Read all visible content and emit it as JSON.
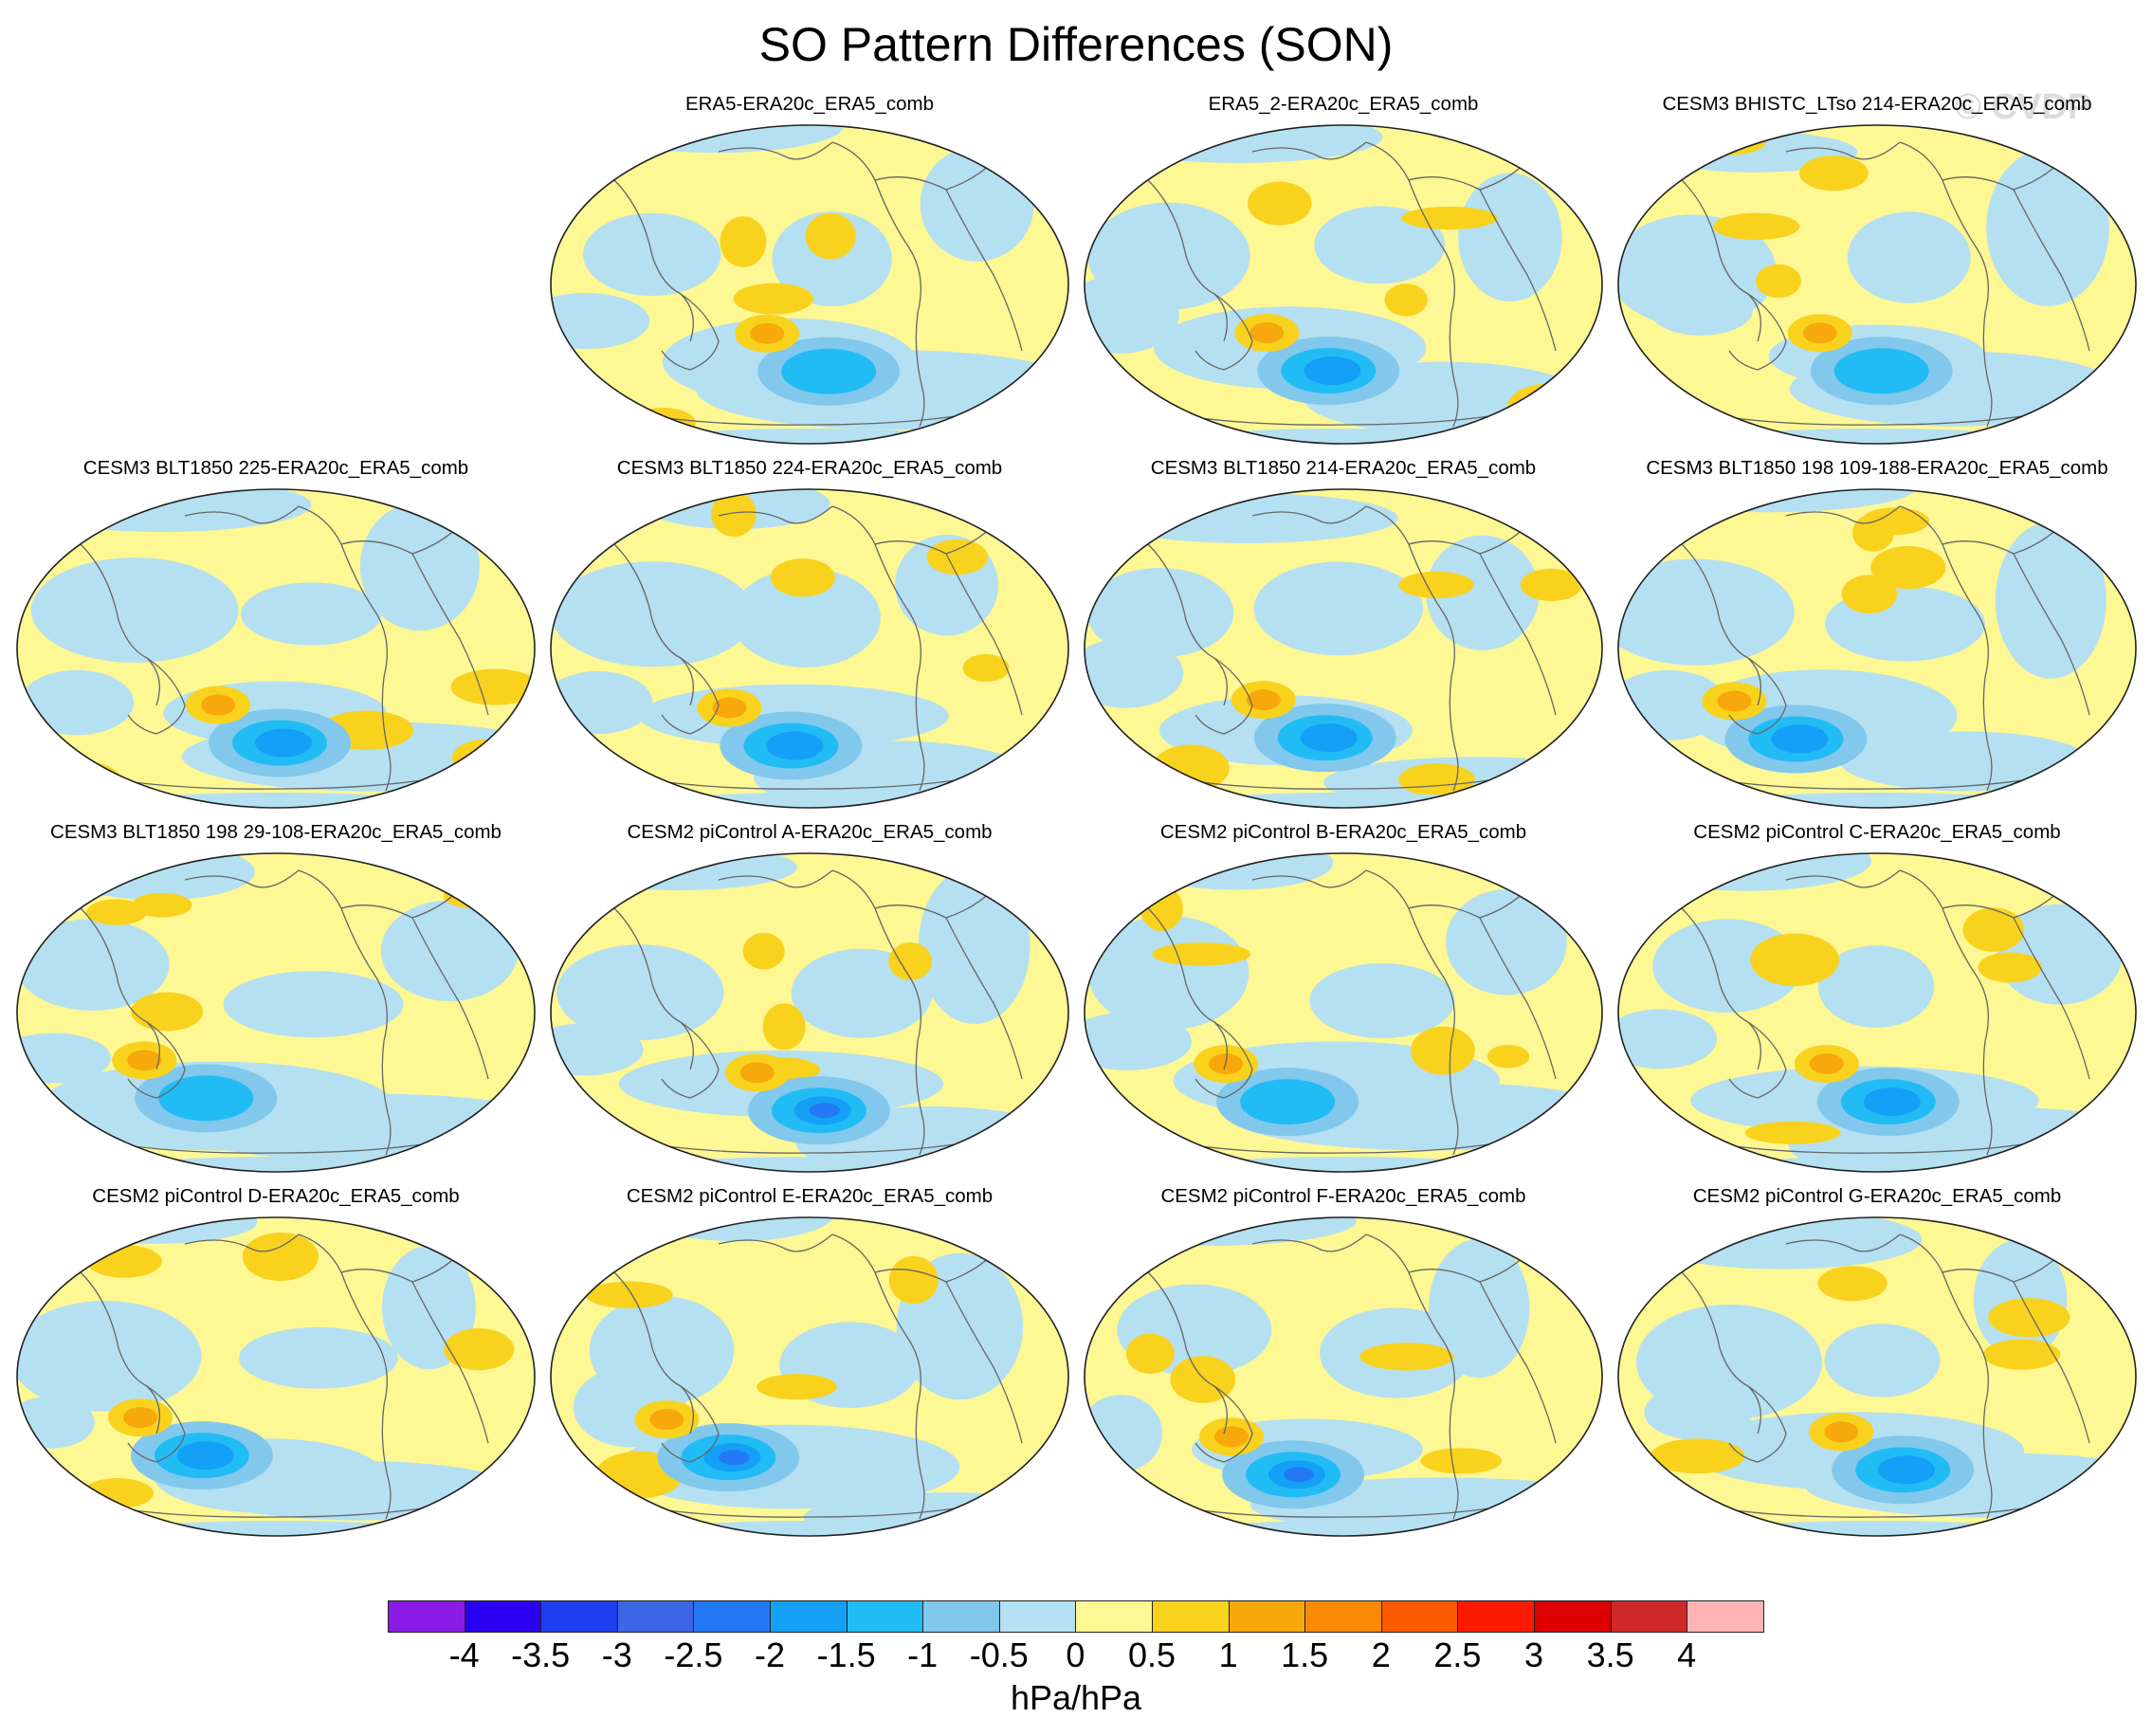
{
  "title": "SO Pattern Differences (SON)",
  "watermark": "© CVDP",
  "panels": [
    {
      "title": "ERA5-ERA20c_ERA5_comb"
    },
    {
      "title": "ERA5_2-ERA20c_ERA5_comb"
    },
    {
      "title": "CESM3 BHISTC_LTso 214-ERA20c_ERA5_comb"
    },
    {
      "title": "CESM3 BLT1850 225-ERA20c_ERA5_comb"
    },
    {
      "title": "CESM3 BLT1850 224-ERA20c_ERA5_comb"
    },
    {
      "title": "CESM3 BLT1850 214-ERA20c_ERA5_comb"
    },
    {
      "title": "CESM3 BLT1850 198 109-188-ERA20c_ERA5_comb"
    },
    {
      "title": "CESM3 BLT1850 198 29-108-ERA20c_ERA5_comb"
    },
    {
      "title": "CESM2 piControl A-ERA20c_ERA5_comb"
    },
    {
      "title": "CESM2 piControl B-ERA20c_ERA5_comb"
    },
    {
      "title": "CESM2 piControl C-ERA20c_ERA5_comb"
    },
    {
      "title": "CESM2 piControl D-ERA20c_ERA5_comb"
    },
    {
      "title": "CESM2 piControl E-ERA20c_ERA5_comb"
    },
    {
      "title": "CESM2 piControl F-ERA20c_ERA5_comb"
    },
    {
      "title": "CESM2 piControl G-ERA20c_ERA5_comb"
    }
  ],
  "colorbar": {
    "colors": [
      "#8a1be6",
      "#2a00f2",
      "#1e3ef0",
      "#3c66e6",
      "#2478f4",
      "#14a0f6",
      "#22bcf5",
      "#82c8ec",
      "#b4e0f2",
      "#fdf794",
      "#f9d21e",
      "#f7a80a",
      "#f88a06",
      "#fc5a00",
      "#fe1a00",
      "#de0000",
      "#ce2828",
      "#feb4b4"
    ],
    "labels": [
      "-4",
      "-3.5",
      "-3",
      "-2.5",
      "-2",
      "-1.5",
      "-1",
      "-0.5",
      "0",
      "0.5",
      "1",
      "1.5",
      "2",
      "2.5",
      "3",
      "3.5",
      "4"
    ],
    "units": "hPa/hPa"
  }
}
